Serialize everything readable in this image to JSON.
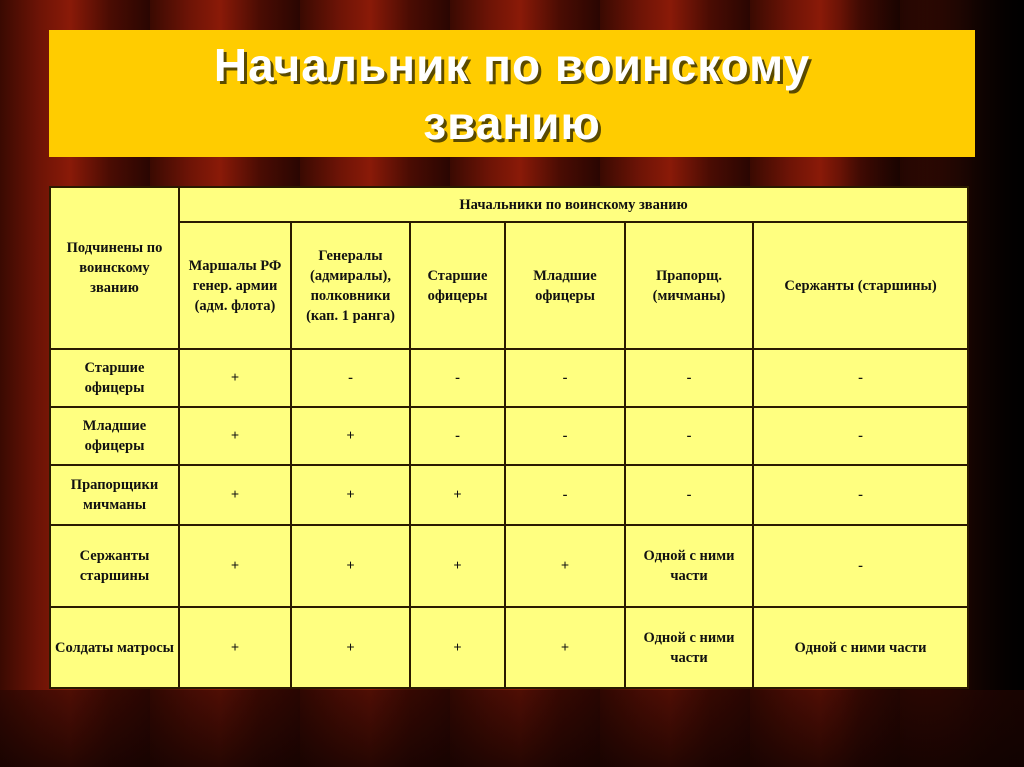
{
  "title": "Начальник по воинскому званию",
  "table": {
    "corner_header": "Подчинены по воинскому званию",
    "group_header": "Начальники по воинскому званию",
    "columns": [
      "Маршалы РФ генер. армии (адм. флота)",
      "Генералы (адмиралы), полковники (кап. 1 ранга)",
      "Старшие офицеры",
      "Младшие офицеры",
      "Прапорщ. (мичманы)",
      "Сержанты (старшины)"
    ],
    "rows": [
      {
        "label": "Старшие офицеры",
        "cells": [
          "+",
          "-",
          "-",
          "-",
          "-",
          "-"
        ]
      },
      {
        "label": "Младшие офицеры",
        "cells": [
          "+",
          "+",
          "-",
          "-",
          "-",
          "-"
        ]
      },
      {
        "label": "Прапорщики мичманы",
        "cells": [
          "+",
          "+",
          "+",
          "-",
          "-",
          "-"
        ]
      },
      {
        "label": "Сержанты старшины",
        "cells": [
          "+",
          "+",
          "+",
          "+",
          "Одной с ними части",
          "-"
        ]
      },
      {
        "label": "Солдаты матросы",
        "cells": [
          "+",
          "+",
          "+",
          "+",
          "Одной с ними части",
          "Одной с ними части"
        ]
      }
    ]
  },
  "colors": {
    "title_bg": "#FFCC00",
    "table_bg": "#FFFF80",
    "curtain": "#6e1406"
  }
}
